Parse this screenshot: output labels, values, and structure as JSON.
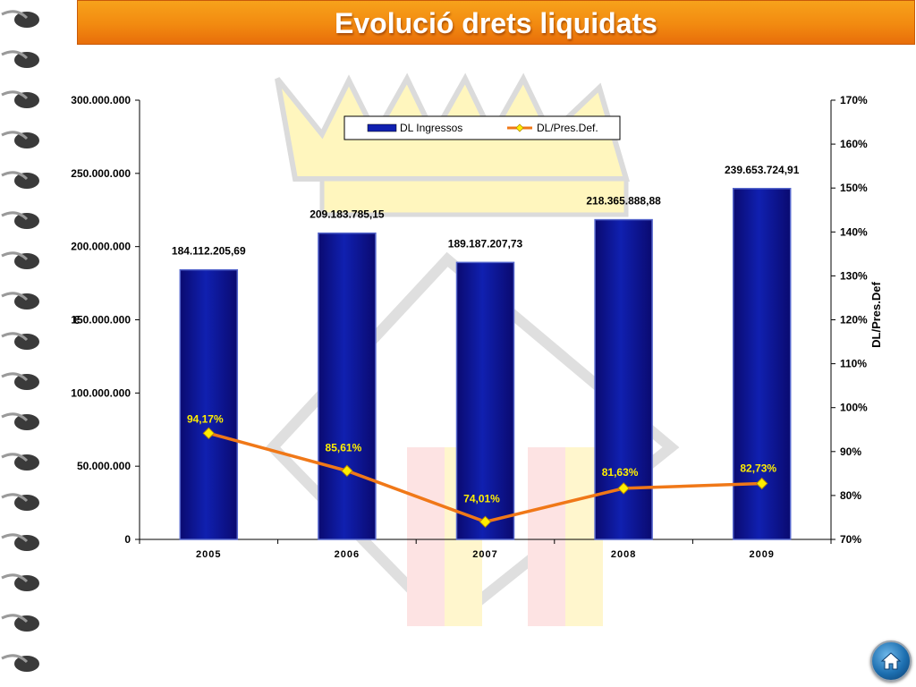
{
  "slide": {
    "title": "Evolució drets liquidats",
    "home_button_icon": "home-icon"
  },
  "chart_data": {
    "type": "bar",
    "categories": [
      "2005",
      "2006",
      "2007",
      "2008",
      "2009"
    ],
    "series": [
      {
        "name": "DL Ingressos",
        "type": "bar",
        "axis": "left",
        "values": [
          184112205.69,
          209183785.15,
          189187207.73,
          218365888.88,
          239653724.91
        ],
        "labels": [
          "184.112.205,69",
          "209.183.785,15",
          "189.187.207,73",
          "218.365.888,88",
          "239.653.724,91"
        ],
        "color": "#1020b0"
      },
      {
        "name": "DL/Pres.Def.",
        "type": "line",
        "axis": "right",
        "values": [
          94.17,
          85.61,
          74.01,
          81.63,
          82.73
        ],
        "labels": [
          "94,17%",
          "85,61%",
          "74,01%",
          "81,63%",
          "82,73%"
        ],
        "color": "#f07818",
        "marker_color": "#ffee00"
      }
    ],
    "left_axis": {
      "range": [
        0,
        300000000
      ],
      "tick_labels": [
        "0",
        "50.000.000",
        "100.000.000",
        "150.000.000",
        "200.000.000",
        "250.000.000",
        "300.000.000"
      ],
      "label": "€"
    },
    "right_axis": {
      "range": [
        70,
        170
      ],
      "tick_labels": [
        "70%",
        "80%",
        "90%",
        "100%",
        "110%",
        "120%",
        "130%",
        "140%",
        "150%",
        "160%",
        "170%"
      ],
      "label": "DL/Pres.Def"
    },
    "legend_position": "top-center",
    "grid": false
  }
}
